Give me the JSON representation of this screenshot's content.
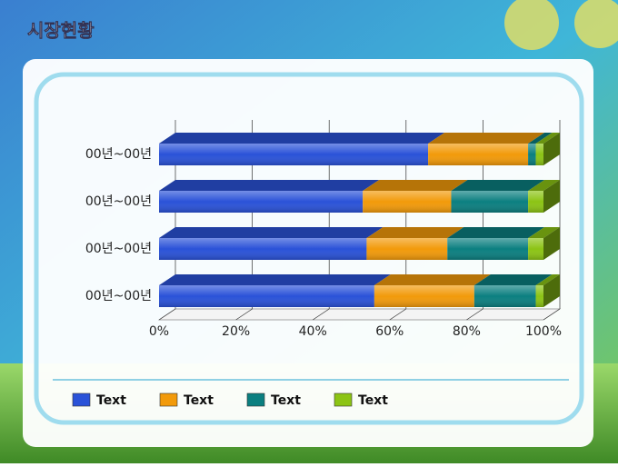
{
  "chart_data": {
    "type": "bar",
    "orientation": "horizontal",
    "stacked": true,
    "title": "시장현황",
    "categories": [
      "00년~00년",
      "00년~00년",
      "00년~00년",
      "00년~00년"
    ],
    "series": [
      {
        "name": "Text",
        "color": "#2a52d8",
        "values": [
          70,
          53,
          54,
          56
        ]
      },
      {
        "name": "Text",
        "color": "#f29a0a",
        "values": [
          26,
          23,
          21,
          26
        ]
      },
      {
        "name": "Text",
        "color": "#0b7f80",
        "values": [
          2,
          20,
          21,
          16
        ]
      },
      {
        "name": "Text",
        "color": "#8cc414",
        "values": [
          2,
          4,
          4,
          2
        ]
      }
    ],
    "xlim": [
      0,
      100
    ],
    "xticks": [
      {
        "value": 0,
        "label": "0%"
      },
      {
        "value": 20,
        "label": "20%"
      },
      {
        "value": 40,
        "label": "40%"
      },
      {
        "value": 60,
        "label": "60%"
      },
      {
        "value": 80,
        "label": "80%"
      },
      {
        "value": 100,
        "label": "100%"
      }
    ],
    "grid": true
  }
}
